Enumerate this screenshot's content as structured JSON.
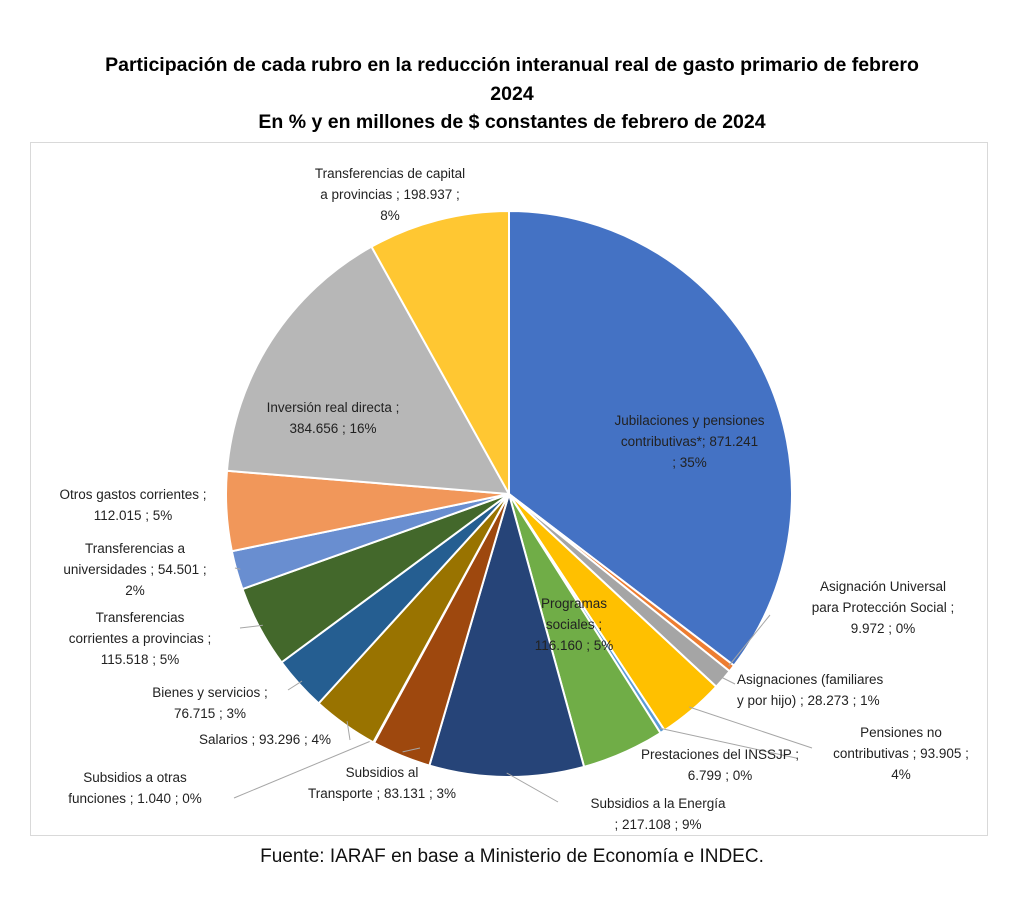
{
  "title_line1": "Participación de cada rubro en la reducción interanual real de gasto primario de febrero",
  "title_line2": "2024",
  "subtitle": "En % y en millones de $ constantes de febrero de 2024",
  "source": "Fuente: IARAF en base a Ministerio de Economía e INDEC.",
  "chart_data": {
    "type": "pie",
    "title": "Participación de cada rubro en la reducción interanual real de gasto primario de febrero 2024",
    "subtitle": "En % y en millones de $ constantes de febrero de 2024",
    "start_angle_deg": 0,
    "direction": "clockwise",
    "slices": [
      {
        "label": "Jubilaciones y pensiones contributivas*",
        "value": 871.241,
        "percent": 35,
        "color": "#4472C4",
        "label_text": "Jubilaciones y pensiones\ncontributivas*; 871.241\n; 35%"
      },
      {
        "label": "Asignación Universal para Protección Social",
        "value": 9.972,
        "percent": 0,
        "color": "#ED7D31",
        "label_text": "Asignación Universal\npara Protección Social ;\n9.972 ; 0%"
      },
      {
        "label": "Asignaciones (familiares y por hijo)",
        "value": 28.273,
        "percent": 1,
        "color": "#A5A5A5",
        "label_text": "Asignaciones (familiares\ny por hijo) ; 28.273 ; 1%"
      },
      {
        "label": "Pensiones no contributivas",
        "value": 93.905,
        "percent": 4,
        "color": "#FFC000",
        "label_text": "Pensiones no\ncontributivas ; 93.905 ;\n4%"
      },
      {
        "label": "Prestaciones del INSSJP",
        "value": 6.799,
        "percent": 0,
        "color": "#5B9BD5",
        "label_text": "Prestaciones del INSSJP ;\n6.799 ; 0%"
      },
      {
        "label": "Programas sociales",
        "value": 116.16,
        "percent": 5,
        "color": "#70AD47",
        "label_text": "Programas\nsociales ;\n116.160 ; 5%"
      },
      {
        "label": "Subsidios a la Energía",
        "value": 217.108,
        "percent": 9,
        "color": "#264478",
        "label_text": "Subsidios a la Energía\n; 217.108 ; 9%"
      },
      {
        "label": "Subsidios al Transporte",
        "value": 83.131,
        "percent": 3,
        "color": "#9E480E",
        "label_text": "Subsidios al\nTransporte ; 83.131 ; 3%"
      },
      {
        "label": "Subsidios a otras funciones",
        "value": 1.04,
        "percent": 0,
        "color": "#636363",
        "label_text": "Subsidios a otras\nfunciones ; 1.040 ; 0%"
      },
      {
        "label": "Salarios",
        "value": 93.296,
        "percent": 4,
        "color": "#997300",
        "label_text": "Salarios ; 93.296 ; 4%"
      },
      {
        "label": "Bienes y servicios",
        "value": 76.715,
        "percent": 3,
        "color": "#255E91",
        "label_text": "Bienes y servicios ;\n76.715 ; 3%"
      },
      {
        "label": "Transferencias corrientes a provincias",
        "value": 115.518,
        "percent": 5,
        "color": "#43682B",
        "label_text": "Transferencias\ncorrientes a provincias ;\n115.518 ; 5%"
      },
      {
        "label": "Transferencias a universidades",
        "value": 54.501,
        "percent": 2,
        "color": "#698ED0",
        "label_text": "Transferencias a\nuniversidades ; 54.501 ;\n2%"
      },
      {
        "label": "Otros gastos corrientes",
        "value": 112.015,
        "percent": 5,
        "color": "#F1975A",
        "label_text": "Otros gastos corrientes ;\n112.015 ; 5%"
      },
      {
        "label": "Inversión real directa",
        "value": 384.656,
        "percent": 16,
        "color": "#B7B7B7",
        "label_text": "Inversión real directa ;\n384.656 ; 16%"
      },
      {
        "label": "Transferencias de capital a provincias",
        "value": 198.937,
        "percent": 8,
        "color": "#FFC732",
        "label_text": "Transferencias de capital\na provincias ; 198.937 ;\n8%"
      }
    ]
  }
}
